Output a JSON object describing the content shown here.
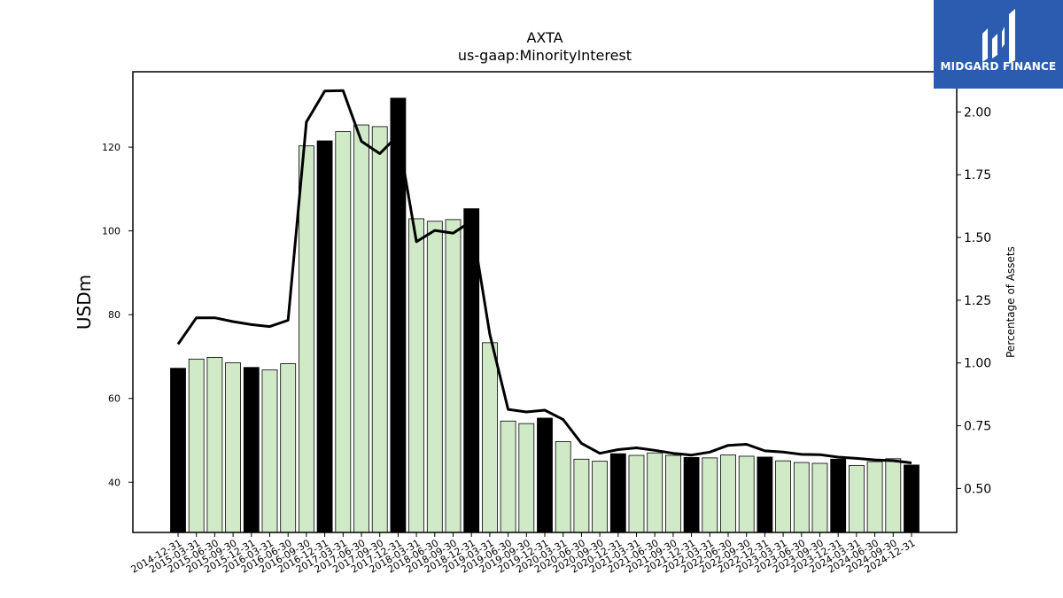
{
  "chart_data": {
    "type": "bar",
    "title": "AXTA",
    "subtitle": "us-gaap:MinorityInterest",
    "ylabel": "USDm",
    "y2label": "Percentage of Assets",
    "ylim": [
      28,
      138
    ],
    "y2lim": [
      0.325,
      2.16
    ],
    "yticks": [
      40,
      60,
      80,
      100,
      120
    ],
    "y2ticks": [
      0.5,
      0.75,
      1.0,
      1.25,
      1.5,
      1.75,
      2.0
    ],
    "bar_colors": {
      "q4": "#000000",
      "other": "#d0eac8"
    },
    "line_color": "#000000",
    "categories": [
      "2014-12-31",
      "2015-03-31",
      "2015-06-30",
      "2015-09-30",
      "2015-12-31",
      "2016-03-31",
      "2016-06-30",
      "2016-09-30",
      "2016-12-31",
      "2017-03-31",
      "2017-06-30",
      "2017-09-30",
      "2017-12-31",
      "2018-03-31",
      "2018-06-30",
      "2018-09-30",
      "2018-12-31",
      "2019-03-31",
      "2019-06-30",
      "2019-09-30",
      "2019-12-31",
      "2020-03-31",
      "2020-06-30",
      "2020-09-30",
      "2020-12-31",
      "2021-03-31",
      "2021-06-30",
      "2021-09-30",
      "2021-12-31",
      "2022-03-31",
      "2022-06-30",
      "2022-09-30",
      "2022-12-31",
      "2023-03-31",
      "2023-06-30",
      "2023-09-30",
      "2023-12-31",
      "2024-03-31",
      "2024-06-30",
      "2024-09-30",
      "2024-12-31"
    ],
    "series": [
      {
        "type": "bar",
        "axis": "left",
        "values": [
          67.2,
          69.4,
          69.8,
          68.5,
          67.4,
          66.8,
          68.3,
          120.3,
          121.5,
          123.7,
          125.3,
          124.9,
          131.7,
          102.9,
          102.3,
          102.7,
          105.3,
          73.3,
          54.6,
          54.0,
          55.3,
          49.7,
          45.5,
          45.0,
          46.8,
          46.4,
          47.0,
          46.4,
          45.9,
          45.8,
          46.5,
          46.2,
          46.0,
          45.1,
          44.7,
          44.5,
          45.5,
          44.0,
          44.9,
          45.6,
          44.1
        ]
      },
      {
        "type": "line",
        "axis": "right",
        "values": [
          1.075,
          1.18,
          1.18,
          1.165,
          1.153,
          1.145,
          1.17,
          1.96,
          2.083,
          2.085,
          1.883,
          1.834,
          1.907,
          1.483,
          1.528,
          1.517,
          1.565,
          1.115,
          0.815,
          0.805,
          0.812,
          0.775,
          0.68,
          0.64,
          0.655,
          0.662,
          0.652,
          0.64,
          0.633,
          0.645,
          0.672,
          0.676,
          0.65,
          0.645,
          0.636,
          0.635,
          0.625,
          0.62,
          0.614,
          0.611,
          0.602
        ]
      }
    ]
  },
  "logo": {
    "text": "MIDGARD FINANCE"
  }
}
